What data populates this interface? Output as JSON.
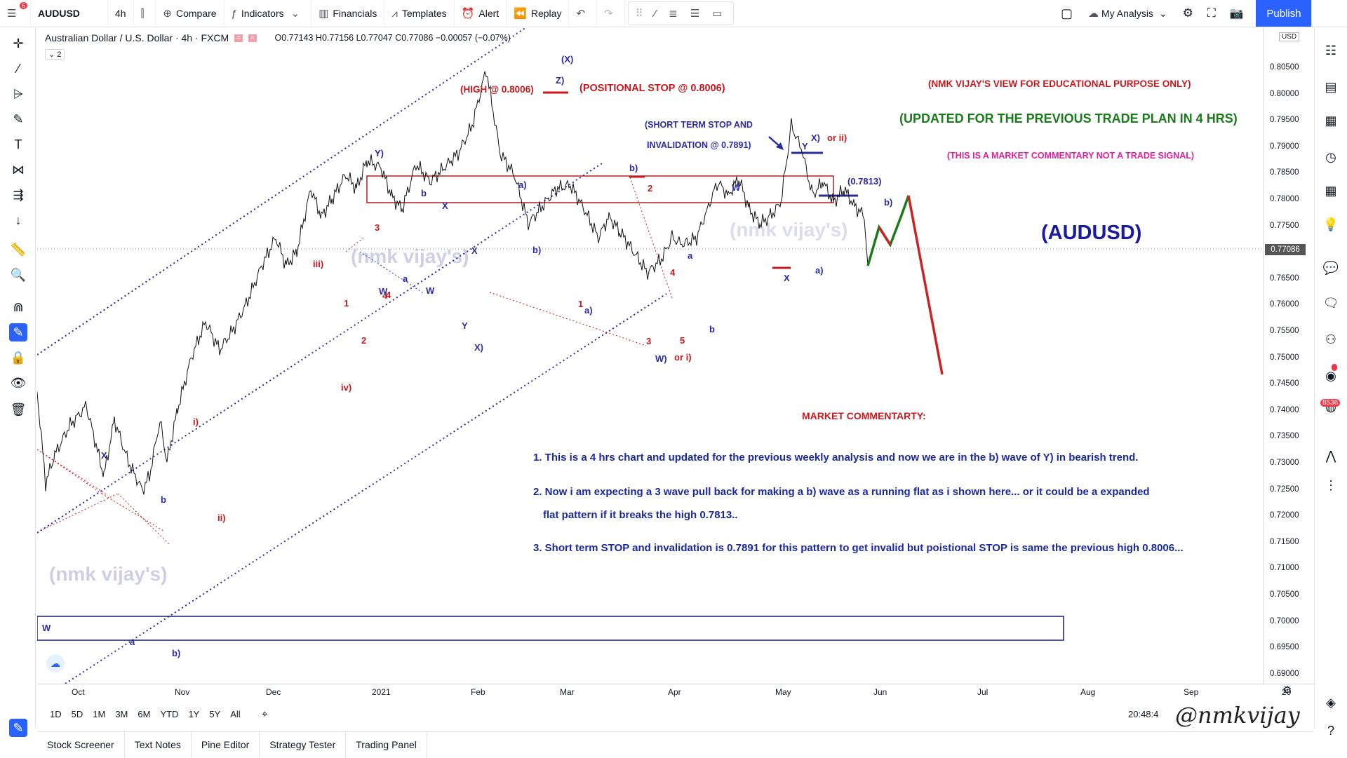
{
  "topbar": {
    "menu_badge": "6",
    "symbol": "AUDUSD",
    "interval": "4h",
    "compare": "Compare",
    "indicators": "Indicators",
    "financials": "Financials",
    "templates": "Templates",
    "alert": "Alert",
    "replay": "Replay",
    "my_analysis": "My Analysis",
    "publish": "Publish"
  },
  "legend": {
    "title": "Australian Dollar / U.S. Dollar · 4h · FXCM",
    "ohlc": "O0.77143 H0.77156 L0.77047 C0.77086 −0.00057 (−0.07%)",
    "collapse": "2"
  },
  "price_axis": {
    "currency": "USD",
    "labels": [
      "0.80500",
      "0.80000",
      "0.79500",
      "0.79000",
      "0.78500",
      "0.78000",
      "0.77500",
      "0.77000",
      "0.76500",
      "0.76000",
      "0.75500",
      "0.75000",
      "0.74500",
      "0.74000",
      "0.73500",
      "0.73000",
      "0.72500",
      "0.72000",
      "0.71500",
      "0.71000",
      "0.70500",
      "0.70000",
      "0.69500",
      "0.69000"
    ],
    "current": "0.77086"
  },
  "time_axis": {
    "labels": [
      "Oct",
      "Nov",
      "Dec",
      "2021",
      "Feb",
      "Mar",
      "Apr",
      "May",
      "Jun",
      "Jul",
      "Aug",
      "Sep",
      "20"
    ]
  },
  "range_bar": {
    "ranges": [
      "1D",
      "5D",
      "1M",
      "3M",
      "6M",
      "YTD",
      "1Y",
      "5Y",
      "All"
    ],
    "clock": "20:48:4"
  },
  "bottom_panel": {
    "tabs": [
      "Stock Screener",
      "Text Notes",
      "Pine Editor",
      "Strategy Tester",
      "Trading Panel"
    ]
  },
  "right_sidebar": {
    "badge": "8536"
  },
  "annotations": {
    "high_label": "(HIGH @ 0.8006)",
    "positional_stop": "(POSITIONAL STOP @ 0.8006)",
    "short_term_stop_1": "(SHORT TERM STOP AND",
    "short_term_stop_2": "INVALIDATION @ 0.7891)",
    "level_7813": "(0.7813)",
    "edu_note": "(NMK VIJAY'S VIEW FOR EDUCATIONAL PURPOSE ONLY)",
    "updated_note": "(UPDATED FOR THE PREVIOUS TRADE PLAN IN 4 HRS)",
    "commentary_note": "(THIS IS A MARKET COMMENTARY NOT A TRADE SIGNAL)",
    "symbol_big": "(AUDUSD)",
    "market_commentary_title": "MARKET COMMENTARTY:",
    "point1": "1. This is a 4 hrs chart and updated for the previous weekly analysis and now we are in the b) wave of Y) in bearish trend.",
    "point2a": "2. Now i am expecting a 3 wave pull back for making a b) wave as a running flat as i shown here... or it could be a expanded",
    "point2b": "flat pattern if it breaks the high 0.7813..",
    "point3": "3. Short term STOP and invalidation is 0.7891 for this pattern to get invalid but poistional STOP is same the previous high 0.8006...",
    "wm_center": "(nmk vijay's)",
    "wm_left": "(nmk vijay's)",
    "wm_center2": "(nmk vijay's)",
    "signature": "@nmkvijay"
  },
  "wave_labels": [
    {
      "t": "(X)",
      "c": "#2a2aa8"
    },
    {
      "t": "Z)",
      "c": "#2a2aa8"
    },
    {
      "t": "Y)",
      "c": "#2a2aa8"
    },
    {
      "t": "b",
      "c": "#2a2aa8"
    },
    {
      "t": "X",
      "c": "#2a2aa8"
    },
    {
      "t": "a)",
      "c": "#2a2aa8"
    },
    {
      "t": "b)",
      "c": "#2a2aa8"
    },
    {
      "t": "2",
      "c": "#c8191e"
    },
    {
      "t": "W",
      "c": "#2a2aa8"
    },
    {
      "t": "Y",
      "c": "#2a2aa8"
    },
    {
      "t": "X)",
      "c": "#2a2aa8"
    },
    {
      "t": "or ii)",
      "c": "#c8191e"
    },
    {
      "t": "b)",
      "c": "#2a2aa8"
    },
    {
      "t": "3",
      "c": "#c8191e"
    },
    {
      "t": "iii)",
      "c": "#c8191e"
    },
    {
      "t": "4",
      "c": "#c8191e"
    },
    {
      "t": "a",
      "c": "#2a2aa8"
    },
    {
      "t": "W",
      "c": "#2a2aa8"
    },
    {
      "t": "Y",
      "c": "#2a2aa8"
    },
    {
      "t": "X",
      "c": "#2a2aa8"
    },
    {
      "t": "X)",
      "c": "#2a2aa8"
    },
    {
      "t": "b)",
      "c": "#2a2aa8"
    },
    {
      "t": "1",
      "c": "#c8191e"
    },
    {
      "t": "a)",
      "c": "#2a2aa8"
    },
    {
      "t": "4",
      "c": "#c8191e"
    },
    {
      "t": "a",
      "c": "#2a2aa8"
    },
    {
      "t": "b",
      "c": "#2a2aa8"
    },
    {
      "t": "3",
      "c": "#c8191e"
    },
    {
      "t": "5",
      "c": "#c8191e"
    },
    {
      "t": "W)",
      "c": "#2a2aa8"
    },
    {
      "t": "or i)",
      "c": "#c8191e"
    },
    {
      "t": "X",
      "c": "#2a2aa8"
    },
    {
      "t": "a)",
      "c": "#2a2aa8"
    },
    {
      "t": "2",
      "c": "#c8191e"
    },
    {
      "t": "iv)",
      "c": "#c8191e"
    },
    {
      "t": "i)",
      "c": "#c8191e"
    },
    {
      "t": "ii)",
      "c": "#c8191e"
    },
    {
      "t": "X",
      "c": "#2a2aa8"
    },
    {
      "t": "b",
      "c": "#2a2aa8"
    },
    {
      "t": "W",
      "c": "#2a2aa8"
    },
    {
      "t": "a",
      "c": "#2a2aa8"
    },
    {
      "t": "b)",
      "c": "#2a2aa8"
    },
    {
      "t": "1",
      "c": "#c8191e"
    },
    {
      "t": "4",
      "c": "#c8191e"
    },
    {
      "t": "W",
      "c": "#2a2aa8"
    }
  ]
}
